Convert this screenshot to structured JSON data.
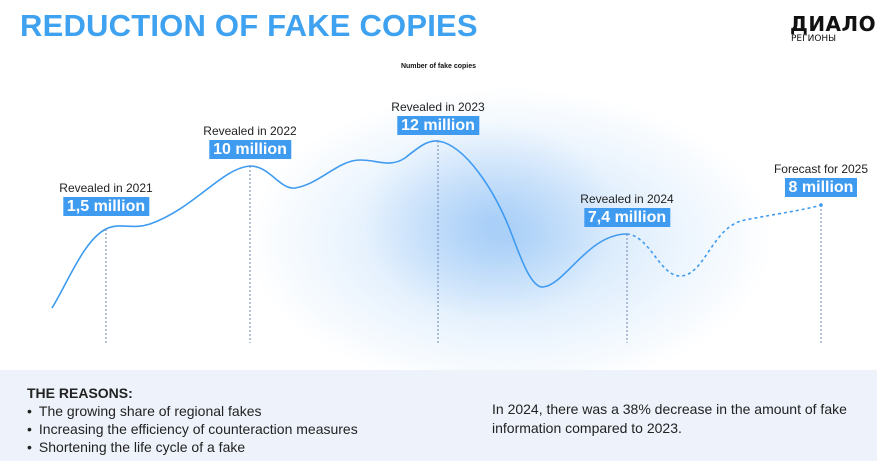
{
  "header": {
    "title": "REDUCTION OF FAKE COPIES"
  },
  "logo": {
    "main": "ДИАЛОГ",
    "sub": "РЕГИОНЫ"
  },
  "chart_data": {
    "type": "line",
    "title": "Number of fake copies",
    "unit": "million",
    "points": [
      {
        "period": "2021",
        "label": "Revealed in 2021",
        "display_value": "1,5 million",
        "value": 1.5,
        "kind": "actual"
      },
      {
        "period": "2022",
        "label": "Revealed in 2022",
        "display_value": "10 million",
        "value": 10,
        "kind": "actual"
      },
      {
        "period": "2023",
        "label": "Revealed in 2023",
        "display_value": "12 million",
        "value": 12,
        "kind": "actual"
      },
      {
        "period": "2024",
        "label": "Revealed in 2024",
        "display_value": "7,4 million",
        "value": 7.4,
        "kind": "actual"
      },
      {
        "period": "2025",
        "label": "Forecast for 2025",
        "display_value": "8 million",
        "value": 8,
        "kind": "forecast"
      }
    ],
    "colors": {
      "line": "#3F9BF0",
      "label_bg": "#3F9BF0",
      "guide": "#6E86B0"
    },
    "grid": false
  },
  "reasons": {
    "heading": "THE REASONS:",
    "items": [
      "The growing share of regional fakes",
      "Increasing the efficiency of counteraction measures",
      "Shortening the life cycle of a fake"
    ]
  },
  "note": "In 2024, there was a 38% decrease in the amount of fake information compared to 2023.",
  "colors": {
    "accent": "#3FA2F0",
    "panel_bg": "#EEF3FB"
  }
}
